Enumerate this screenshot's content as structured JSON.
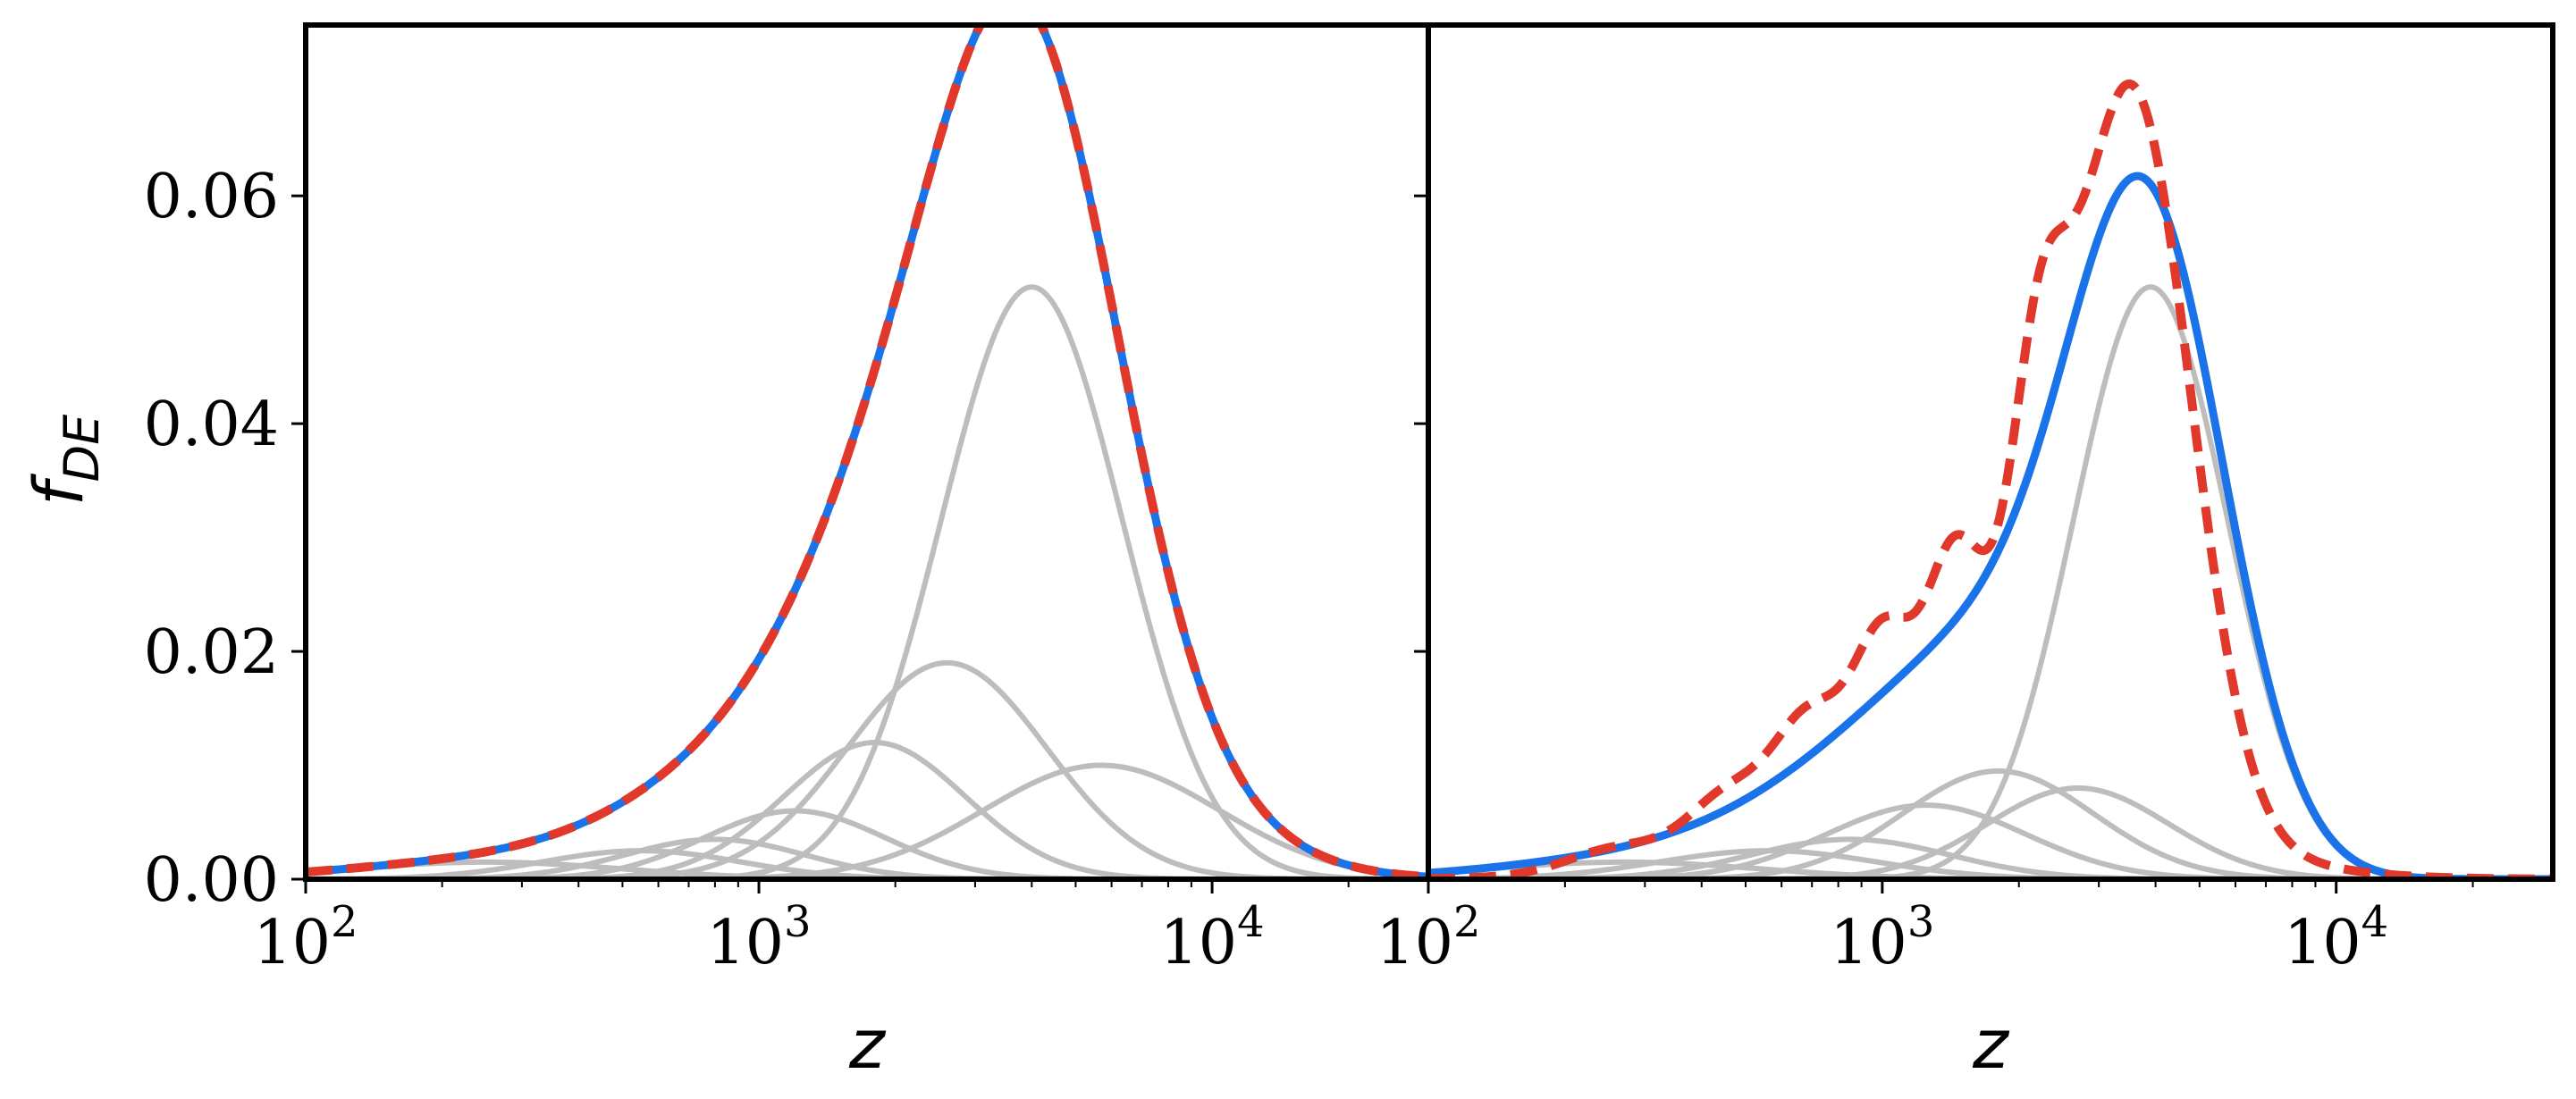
{
  "colors": {
    "fit_line": "#1a73e8",
    "target_dashed": "#e0392b",
    "components": "#bdbdbd",
    "frame": "#000000"
  },
  "chart_data": [
    {
      "type": "line",
      "panel": "left",
      "xlabel": "z",
      "ylabel": "f",
      "ylabel_sub": "DE",
      "xscale": "log",
      "xlim": [
        100,
        30000
      ],
      "ylim": [
        0,
        0.075
      ],
      "x_ticks": [
        {
          "base": "10",
          "exp": "2"
        },
        {
          "base": "10",
          "exp": "3"
        },
        {
          "base": "10",
          "exp": "4"
        }
      ],
      "y_ticks": [
        "0.00",
        "0.02",
        "0.04",
        "0.06"
      ],
      "y_tick_values": [
        0,
        0.02,
        0.04,
        0.06
      ],
      "grid": false,
      "legend": "none",
      "series": [
        {
          "role": "target",
          "style": "dashed",
          "components": [
            {
              "amp": 0.052,
              "center": 4000,
              "width": 0.2
            },
            {
              "amp": 0.019,
              "center": 2600,
              "width": 0.22
            },
            {
              "amp": 0.01,
              "center": 5700,
              "width": 0.26
            },
            {
              "amp": 0.012,
              "center": 1800,
              "width": 0.2
            },
            {
              "amp": 0.006,
              "center": 1200,
              "width": 0.2
            },
            {
              "amp": 0.0035,
              "center": 800,
              "width": 0.2
            },
            {
              "amp": 0.0025,
              "center": 550,
              "width": 0.22
            },
            {
              "amp": 0.0015,
              "center": 250,
              "width": 0.3
            }
          ]
        },
        {
          "role": "fit",
          "style": "solid",
          "components": [
            {
              "amp": 0.052,
              "center": 4000,
              "width": 0.2
            },
            {
              "amp": 0.019,
              "center": 2600,
              "width": 0.22
            },
            {
              "amp": 0.01,
              "center": 5700,
              "width": 0.26
            },
            {
              "amp": 0.012,
              "center": 1800,
              "width": 0.2
            },
            {
              "amp": 0.006,
              "center": 1200,
              "width": 0.2
            },
            {
              "amp": 0.0035,
              "center": 800,
              "width": 0.2
            },
            {
              "amp": 0.0025,
              "center": 550,
              "width": 0.22
            },
            {
              "amp": 0.0015,
              "center": 250,
              "width": 0.3
            }
          ]
        }
      ],
      "component_curves": [
        {
          "amp": 0.052,
          "center": 4000,
          "width": 0.2
        },
        {
          "amp": 0.019,
          "center": 2600,
          "width": 0.22
        },
        {
          "amp": 0.01,
          "center": 5700,
          "width": 0.26
        },
        {
          "amp": 0.012,
          "center": 1800,
          "width": 0.2
        },
        {
          "amp": 0.006,
          "center": 1200,
          "width": 0.2
        },
        {
          "amp": 0.0035,
          "center": 800,
          "width": 0.2
        },
        {
          "amp": 0.0025,
          "center": 550,
          "width": 0.22
        },
        {
          "amp": 0.0015,
          "center": 250,
          "width": 0.3
        }
      ]
    },
    {
      "type": "line",
      "panel": "right",
      "xlabel": "z",
      "xscale": "log",
      "xlim": [
        100,
        30000
      ],
      "ylim": [
        0,
        0.075
      ],
      "x_ticks": [
        {
          "base": "10",
          "exp": "2"
        },
        {
          "base": "10",
          "exp": "3"
        },
        {
          "base": "10",
          "exp": "4"
        }
      ],
      "grid": false,
      "legend": "none",
      "series": [
        {
          "role": "target",
          "style": "dashed",
          "components": [
            {
              "amp": 0.046,
              "center": 3800,
              "width": 0.12
            },
            {
              "amp": 0.02,
              "center": 3000,
              "width": 0.12
            },
            {
              "amp": 0.022,
              "center": 2200,
              "width": 0.06
            },
            {
              "amp": 0.014,
              "center": 1450,
              "width": 0.06
            },
            {
              "amp": 0.009,
              "center": 1000,
              "width": 0.06
            },
            {
              "amp": 0.0055,
              "center": 680,
              "width": 0.07
            },
            {
              "amp": 0.003,
              "center": 450,
              "width": 0.08
            },
            {
              "amp": 0.0015,
              "center": 250,
              "width": 0.1
            },
            {
              "amp": 0.015,
              "center": 1500,
              "width": 0.35
            }
          ]
        },
        {
          "role": "fit",
          "style": "solid",
          "components": [
            {
              "amp": 0.052,
              "center": 3900,
              "width": 0.17
            },
            {
              "amp": 0.008,
              "center": 2700,
              "width": 0.2
            },
            {
              "amp": 0.0095,
              "center": 1800,
              "width": 0.21
            },
            {
              "amp": 0.0065,
              "center": 1250,
              "width": 0.22
            },
            {
              "amp": 0.0035,
              "center": 850,
              "width": 0.22
            },
            {
              "amp": 0.0025,
              "center": 560,
              "width": 0.24
            },
            {
              "amp": 0.0015,
              "center": 270,
              "width": 0.3
            }
          ]
        }
      ],
      "component_curves": [
        {
          "amp": 0.052,
          "center": 3900,
          "width": 0.17
        },
        {
          "amp": 0.008,
          "center": 2700,
          "width": 0.2
        },
        {
          "amp": 0.0095,
          "center": 1800,
          "width": 0.21
        },
        {
          "amp": 0.0065,
          "center": 1250,
          "width": 0.22
        },
        {
          "amp": 0.0035,
          "center": 850,
          "width": 0.22
        },
        {
          "amp": 0.0025,
          "center": 560,
          "width": 0.24
        },
        {
          "amp": 0.0015,
          "center": 270,
          "width": 0.3
        }
      ]
    }
  ]
}
